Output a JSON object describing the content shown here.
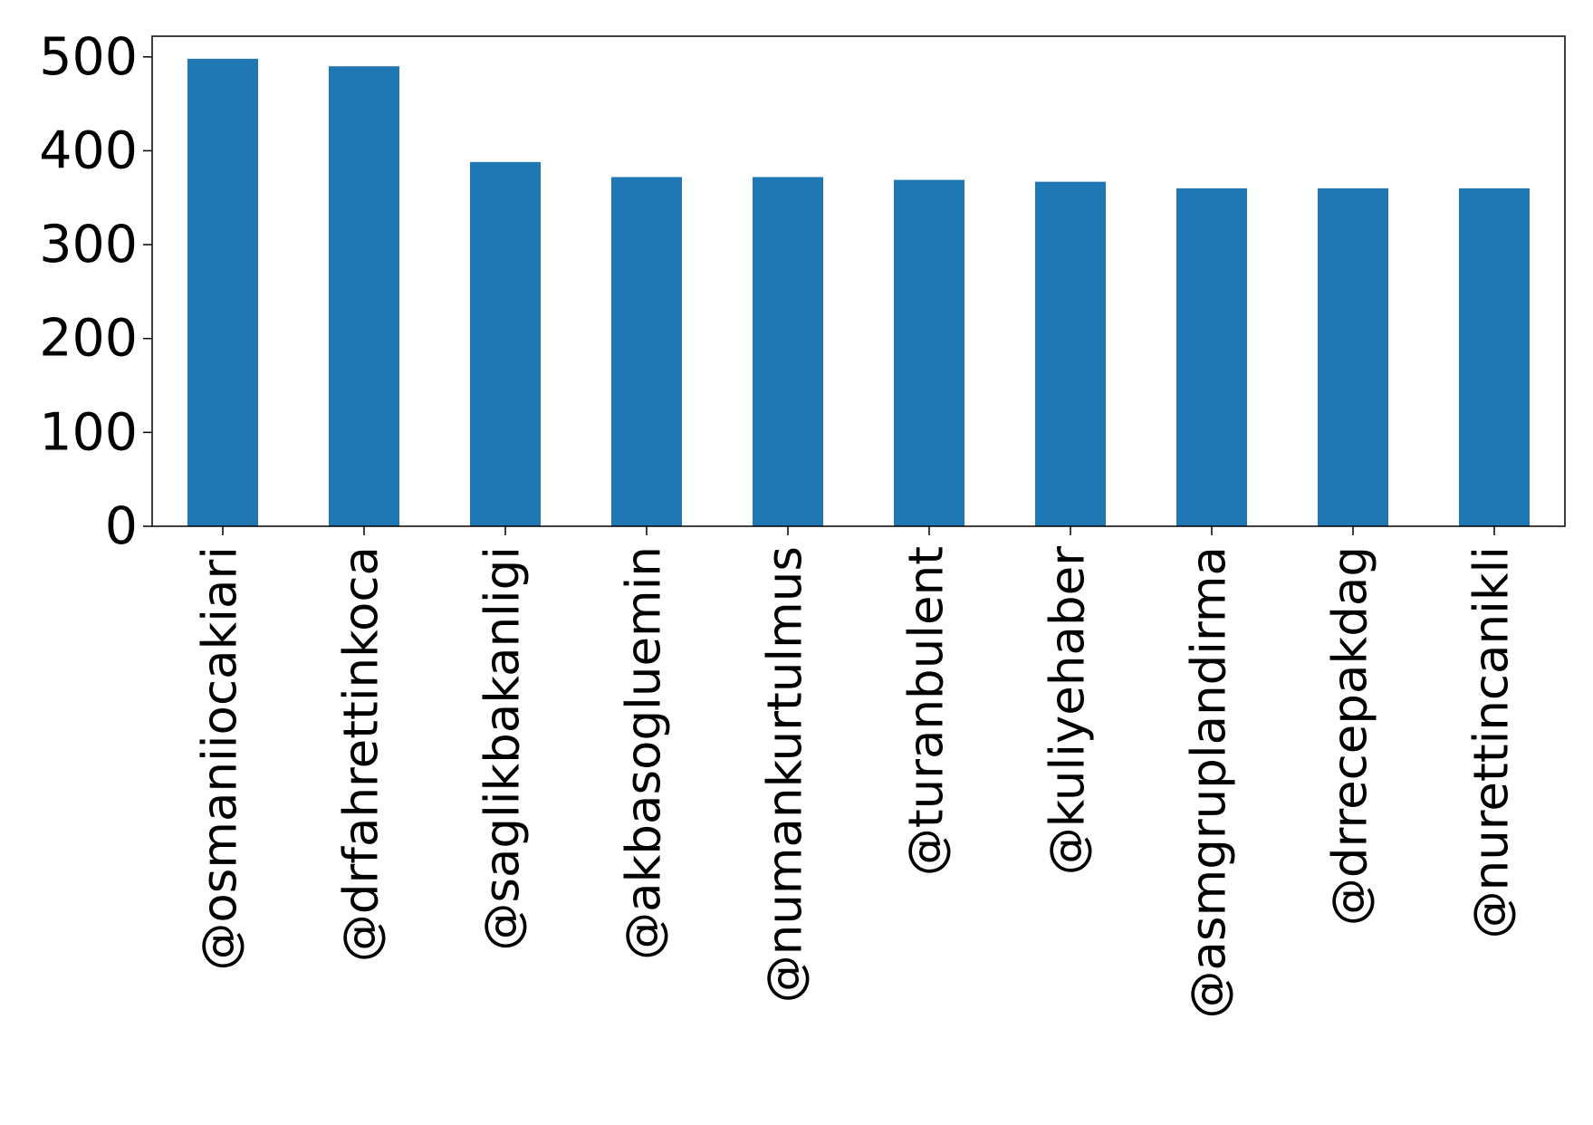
{
  "colors": {
    "bar": "#1f77b4",
    "axis": "#000000",
    "background": "#ffffff"
  },
  "chart_data": {
    "type": "bar",
    "title": "",
    "xlabel": "",
    "ylabel": "",
    "categories": [
      "@osmaniiocakiari",
      "@drfahrettinkoca",
      "@saglikbakanligi",
      "@akbasogluemin",
      "@numankurtulmus",
      "@turanbulent",
      "@kuliyehaber",
      "@asmgruplandirma",
      "@drrecepakdag",
      "@nurettincanikli"
    ],
    "values": [
      498,
      490,
      388,
      372,
      372,
      369,
      367,
      360,
      360,
      360
    ],
    "ylim": [
      0,
      522
    ],
    "yticks": [
      0,
      100,
      200,
      300,
      400,
      500
    ],
    "grid": false,
    "legend": "none"
  }
}
